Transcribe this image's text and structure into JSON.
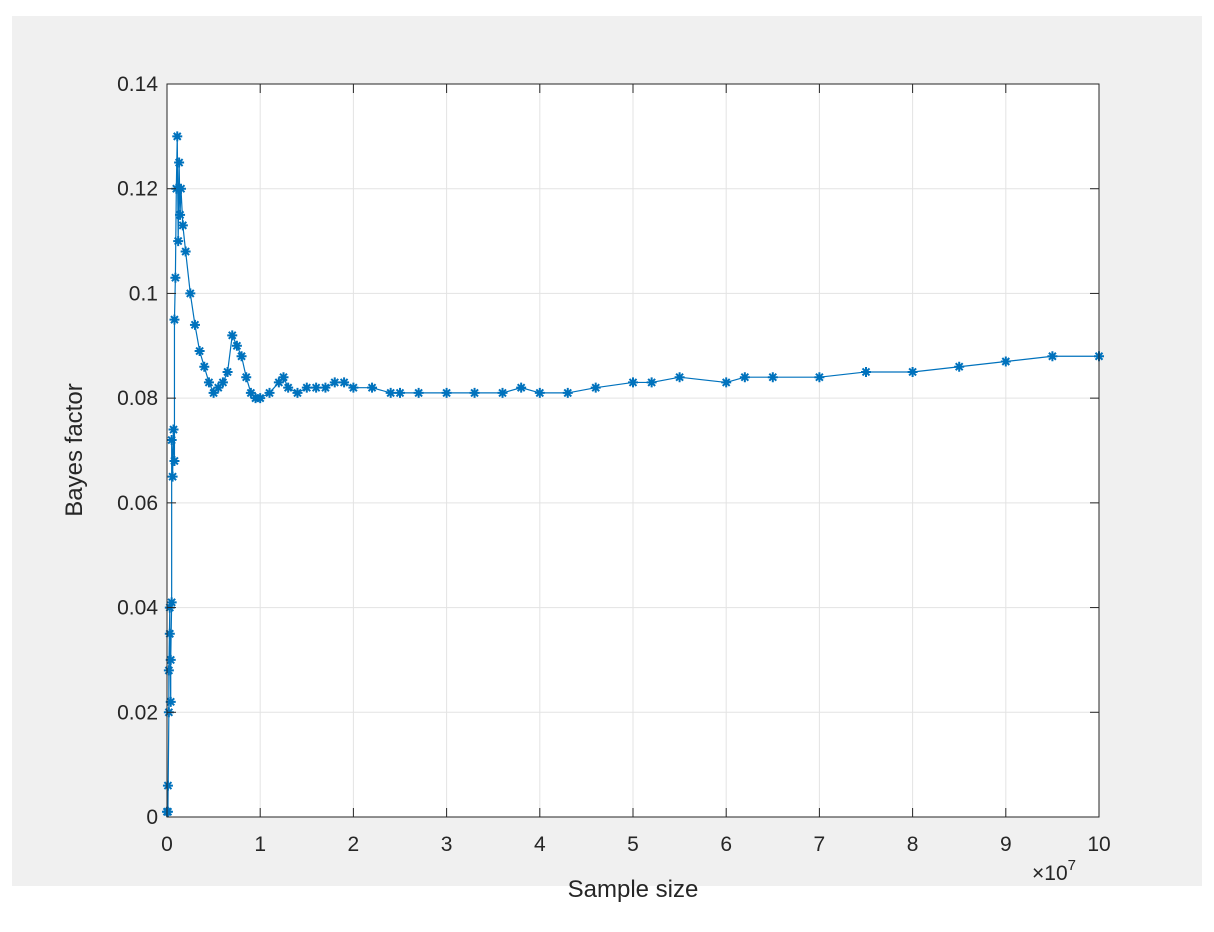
{
  "chart_data": {
    "type": "scatter",
    "marker": "star",
    "title": "",
    "xlabel": "Sample size",
    "ylabel": "Bayes factor",
    "x_exponent_label": "×10",
    "x_exponent_power": "7",
    "x_unit_multiplier": 10000000,
    "xlim": [
      0,
      10
    ],
    "ylim": [
      0,
      0.14
    ],
    "xticks": [
      0,
      1,
      2,
      3,
      4,
      5,
      6,
      7,
      8,
      9,
      10
    ],
    "xtick_labels": [
      "0",
      "1",
      "2",
      "3",
      "4",
      "5",
      "6",
      "7",
      "8",
      "9",
      "10"
    ],
    "yticks": [
      0,
      0.02,
      0.04,
      0.06,
      0.08,
      0.1,
      0.12,
      0.14
    ],
    "ytick_labels": [
      "0",
      "0.02",
      "0.04",
      "0.06",
      "0.08",
      "0.1",
      "0.12",
      "0.14"
    ],
    "grid": true,
    "box": true,
    "colors": {
      "series": "#0072BD",
      "grid": "#e3e3e3",
      "axes": "#262626",
      "figure_background": "#f0f0f0",
      "axes_background": "#ffffff"
    },
    "series": [
      {
        "x": [
          0.0,
          0.01,
          0.01,
          0.02,
          0.02,
          0.03,
          0.03,
          0.04,
          0.04,
          0.05,
          0.05,
          0.06,
          0.07,
          0.08,
          0.08,
          0.09,
          0.1,
          0.11,
          0.12,
          0.13,
          0.14,
          0.15,
          0.17,
          0.2,
          0.25,
          0.3,
          0.35,
          0.4,
          0.45,
          0.5,
          0.55,
          0.6,
          0.65,
          0.7,
          0.75,
          0.8,
          0.85,
          0.9,
          0.95,
          1.0,
          1.1,
          1.2,
          1.25,
          1.3,
          1.4,
          1.5,
          1.6,
          1.7,
          1.8,
          1.9,
          2.0,
          2.2,
          2.4,
          2.5,
          2.7,
          3.0,
          3.3,
          3.6,
          3.8,
          4.0,
          4.3,
          4.6,
          5.0,
          5.2,
          5.5,
          6.0,
          6.2,
          6.5,
          7.0,
          7.5,
          8.0,
          8.5,
          9.0,
          9.5,
          10.0
        ],
        "y": [
          0.001,
          0.006,
          0.001,
          0.02,
          0.028,
          0.04,
          0.035,
          0.022,
          0.03,
          0.041,
          0.072,
          0.065,
          0.074,
          0.068,
          0.095,
          0.103,
          0.12,
          0.13,
          0.11,
          0.125,
          0.115,
          0.12,
          0.113,
          0.108,
          0.1,
          0.094,
          0.089,
          0.086,
          0.083,
          0.081,
          0.082,
          0.083,
          0.085,
          0.092,
          0.09,
          0.088,
          0.084,
          0.081,
          0.08,
          0.08,
          0.081,
          0.083,
          0.084,
          0.082,
          0.081,
          0.082,
          0.082,
          0.082,
          0.083,
          0.083,
          0.082,
          0.082,
          0.081,
          0.081,
          0.081,
          0.081,
          0.081,
          0.081,
          0.082,
          0.081,
          0.081,
          0.082,
          0.083,
          0.083,
          0.084,
          0.083,
          0.084,
          0.084,
          0.084,
          0.085,
          0.085,
          0.086,
          0.087,
          0.088,
          0.088
        ]
      }
    ]
  }
}
